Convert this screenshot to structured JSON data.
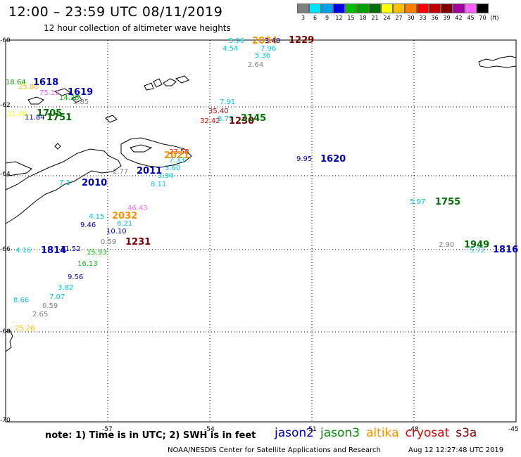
{
  "header": {
    "title": "12:00 – 23:59 UTC 08/11/2019",
    "subtitle": "12 hour collection of altimeter wave heights"
  },
  "colorbar": {
    "unit_label": "(ft)",
    "bins": [
      {
        "label": "3",
        "color": "#808080"
      },
      {
        "label": "6",
        "color": "#00e5ff"
      },
      {
        "label": "9",
        "color": "#00a0f0"
      },
      {
        "label": "12",
        "color": "#0000e0"
      },
      {
        "label": "15",
        "color": "#00c000"
      },
      {
        "label": "18",
        "color": "#00a000"
      },
      {
        "label": "21",
        "color": "#007000"
      },
      {
        "label": "24",
        "color": "#ffff00"
      },
      {
        "label": "27",
        "color": "#ffc000"
      },
      {
        "label": "30",
        "color": "#ff8000"
      },
      {
        "label": "33",
        "color": "#ff0000"
      },
      {
        "label": "36",
        "color": "#c00000"
      },
      {
        "label": "39",
        "color": "#800000"
      },
      {
        "label": "42",
        "color": "#a000a0"
      },
      {
        "label": "45",
        "color": "#ff60ff"
      },
      {
        "label": "70",
        "color": "#000000"
      }
    ]
  },
  "axes": {
    "lon_labels": [
      "-57",
      "-54",
      "-51",
      "-48",
      "-45"
    ],
    "lat_labels": [
      "-60",
      "-62",
      "-64",
      "-66",
      "-68",
      "-70"
    ]
  },
  "observations": [
    {
      "text": "5.96",
      "color": "#00c8e0"
    },
    {
      "text": "4.54",
      "color": "#00c8e0"
    },
    {
      "text": "2094",
      "color": "#ff9000"
    },
    {
      "text": "3.48",
      "color": "#0000c0"
    },
    {
      "text": "1229",
      "color": "#800000"
    },
    {
      "text": "7.96",
      "color": "#00c8e0"
    },
    {
      "text": "5.36",
      "color": "#00c8e0"
    },
    {
      "text": "2.64",
      "color": "#808080"
    },
    {
      "text": "18.64",
      "color": "#00a000"
    },
    {
      "text": "25.88",
      "color": "#ffc000"
    },
    {
      "text": "1618",
      "color": "#0000c0"
    },
    {
      "text": "75.12",
      "color": "#ff60ff"
    },
    {
      "text": "14.38",
      "color": "#00c000"
    },
    {
      "text": "1619",
      "color": "#0000c0"
    },
    {
      "text": "5.85",
      "color": "#808080"
    },
    {
      "text": "21.46",
      "color": "#ffff00"
    },
    {
      "text": "11.84",
      "color": "#0000c0"
    },
    {
      "text": "1705",
      "color": "#007000"
    },
    {
      "text": "1751",
      "color": "#007000"
    },
    {
      "text": "7.91",
      "color": "#00c8e0"
    },
    {
      "text": "35.40",
      "color": "#c00000"
    },
    {
      "text": "32.42",
      "color": "#ff0000"
    },
    {
      "text": "8.77",
      "color": "#00c8e0"
    },
    {
      "text": "1230",
      "color": "#800000"
    },
    {
      "text": "2145",
      "color": "#007000"
    },
    {
      "text": "23.58",
      "color": "#ff0000"
    },
    {
      "text": "2021",
      "color": "#ff9000"
    },
    {
      "text": "7.33",
      "color": "#00c8e0"
    },
    {
      "text": "3.60",
      "color": "#00c8e0"
    },
    {
      "text": "3.94",
      "color": "#00c8e0"
    },
    {
      "text": "2.77",
      "color": "#808080"
    },
    {
      "text": "2011",
      "color": "#0000c0"
    },
    {
      "text": "8.11",
      "color": "#00c8e0"
    },
    {
      "text": "7.3",
      "color": "#00c8e0"
    },
    {
      "text": "2010",
      "color": "#0000c0"
    },
    {
      "text": "9.95",
      "color": "#0000c0"
    },
    {
      "text": "1620",
      "color": "#0000c0"
    },
    {
      "text": "5.97",
      "color": "#00c8e0"
    },
    {
      "text": "1755",
      "color": "#007000"
    },
    {
      "text": "46.43",
      "color": "#ff60ff"
    },
    {
      "text": "4.15",
      "color": "#00c8e0"
    },
    {
      "text": "2032",
      "color": "#ff9000"
    },
    {
      "text": "9.46",
      "color": "#0000c0"
    },
    {
      "text": "6.21",
      "color": "#00c8e0"
    },
    {
      "text": "10.10",
      "color": "#0000c0"
    },
    {
      "text": "0.59",
      "color": "#808080"
    },
    {
      "text": "1231",
      "color": "#800000"
    },
    {
      "text": "2.90",
      "color": "#808080"
    },
    {
      "text": "1949",
      "color": "#007000"
    },
    {
      "text": "5.72",
      "color": "#00c8e0"
    },
    {
      "text": "1816",
      "color": "#0000c0"
    },
    {
      "text": "4.16",
      "color": "#00c8e0"
    },
    {
      "text": "1814",
      "color": "#0000c0"
    },
    {
      "text": "11.52",
      "color": "#0000c0"
    },
    {
      "text": "15.93",
      "color": "#00c000"
    },
    {
      "text": "16.13",
      "color": "#00c000"
    },
    {
      "text": "9.56",
      "color": "#0000c0"
    },
    {
      "text": "3.82",
      "color": "#00c8e0"
    },
    {
      "text": "7.07",
      "color": "#00c8e0"
    },
    {
      "text": "8.66",
      "color": "#00c8e0"
    },
    {
      "text": "0.59",
      "color": "#808080"
    },
    {
      "text": "2.65",
      "color": "#808080"
    },
    {
      "text": "25.28",
      "color": "#ffc000"
    }
  ],
  "note": "note:  1) Time is in UTC;  2) SWH is in feet",
  "legend": [
    {
      "label": "jason2",
      "color": "#0000c0"
    },
    {
      "label": "jason3",
      "color": "#009000"
    },
    {
      "label": "altika",
      "color": "#ff9000"
    },
    {
      "label": "cryosat",
      "color": "#e00000"
    },
    {
      "label": "s3a",
      "color": "#800000"
    }
  ],
  "footer": {
    "credit": "NOAA/NESDIS Center for Satellite Applications and Research",
    "timestamp": "Aug 12 12:27:48 UTC 2019"
  }
}
